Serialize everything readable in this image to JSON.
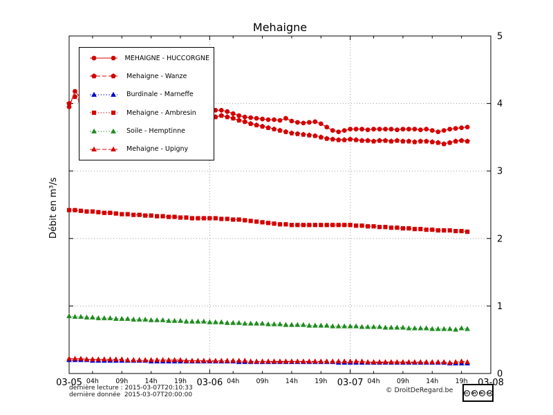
{
  "title": "Mehaigne",
  "ylabel": "Débit en m³/s",
  "footer": {
    "line1": "dernière lecture : 2015-03-07T20:10:33",
    "line2": "dernière donnée  2015-03-07T20:00:00",
    "credit": "© DroitDeRegard.be",
    "license": {
      "cc": "CC",
      "by": "BY",
      "nc": "NC",
      "sa": "SA"
    }
  },
  "chart_data": {
    "type": "line",
    "title": "Mehaigne",
    "ylabel": "Débit en m³/s",
    "x_unit": "hours since 2015-03-05 00:00",
    "x_range": [
      0,
      72
    ],
    "ylim": [
      0,
      5
    ],
    "y_ticks": [
      0,
      1,
      2,
      3,
      4,
      5
    ],
    "x_major_ticks": [
      {
        "pos": 0,
        "label": "03-05"
      },
      {
        "pos": 24,
        "label": "03-06"
      },
      {
        "pos": 48,
        "label": "03-07"
      },
      {
        "pos": 72,
        "label": "03-08"
      }
    ],
    "x_minor_ticks": [
      {
        "pos": 4,
        "label": "04h"
      },
      {
        "pos": 9,
        "label": "09h"
      },
      {
        "pos": 14,
        "label": "14h"
      },
      {
        "pos": 19,
        "label": "19h"
      },
      {
        "pos": 28,
        "label": "04h"
      },
      {
        "pos": 33,
        "label": "09h"
      },
      {
        "pos": 38,
        "label": "14h"
      },
      {
        "pos": 43,
        "label": "19h"
      },
      {
        "pos": 52,
        "label": "04h"
      },
      {
        "pos": 57,
        "label": "09h"
      },
      {
        "pos": 62,
        "label": "14h"
      },
      {
        "pos": 67,
        "label": "19h"
      }
    ],
    "grid": {
      "h_lines": [
        1,
        2,
        3,
        4
      ],
      "v_lines": [
        24,
        48
      ]
    },
    "legend_position": "top-left",
    "x_start": 0,
    "x_step": 1,
    "series": [
      {
        "name": "MEHAIGNE - HUCCORGNE",
        "color": "#d40000",
        "marker": "circle",
        "line": "solid",
        "values": [
          3.95,
          4.18,
          4.08,
          4.02,
          3.98,
          3.95,
          3.93,
          3.91,
          3.9,
          3.89,
          3.88,
          3.87,
          3.86,
          3.85,
          3.84,
          3.83,
          3.82,
          3.81,
          3.8,
          3.79,
          3.78,
          3.77,
          3.77,
          3.78,
          3.82,
          3.9,
          3.9,
          3.88,
          3.85,
          3.82,
          3.8,
          3.79,
          3.78,
          3.77,
          3.76,
          3.76,
          3.75,
          3.78,
          3.74,
          3.72,
          3.71,
          3.72,
          3.73,
          3.7,
          3.65,
          3.6,
          3.58,
          3.6,
          3.62,
          3.62,
          3.62,
          3.61,
          3.62,
          3.62,
          3.62,
          3.62,
          3.61,
          3.62,
          3.62,
          3.62,
          3.61,
          3.62,
          3.6,
          3.58,
          3.6,
          3.62,
          3.63,
          3.64,
          3.65
        ]
      },
      {
        "name": "Mehaigne - Wanze",
        "color": "#d40000",
        "marker": "pentagon",
        "line": "dashed",
        "values": [
          4.0,
          4.1,
          4.02,
          3.97,
          3.94,
          3.92,
          3.9,
          3.88,
          3.87,
          3.86,
          3.85,
          3.84,
          3.83,
          3.82,
          3.81,
          3.8,
          3.79,
          3.78,
          3.78,
          3.77,
          3.77,
          3.76,
          3.76,
          3.76,
          3.76,
          3.8,
          3.82,
          3.8,
          3.78,
          3.75,
          3.73,
          3.7,
          3.68,
          3.66,
          3.64,
          3.62,
          3.6,
          3.58,
          3.56,
          3.55,
          3.54,
          3.53,
          3.52,
          3.5,
          3.48,
          3.47,
          3.46,
          3.46,
          3.47,
          3.46,
          3.45,
          3.45,
          3.44,
          3.45,
          3.45,
          3.44,
          3.45,
          3.44,
          3.44,
          3.43,
          3.44,
          3.44,
          3.43,
          3.42,
          3.4,
          3.42,
          3.44,
          3.45,
          3.44
        ]
      },
      {
        "name": "Burdinale - Marneffe",
        "color": "#0000cc",
        "marker": "triangle",
        "line": "dotted",
        "values": [
          0.2,
          0.2,
          0.2,
          0.2,
          0.19,
          0.19,
          0.19,
          0.19,
          0.19,
          0.19,
          0.19,
          0.19,
          0.19,
          0.19,
          0.18,
          0.18,
          0.18,
          0.18,
          0.18,
          0.18,
          0.18,
          0.18,
          0.18,
          0.18,
          0.18,
          0.18,
          0.18,
          0.18,
          0.18,
          0.17,
          0.17,
          0.17,
          0.17,
          0.17,
          0.17,
          0.17,
          0.17,
          0.17,
          0.17,
          0.17,
          0.17,
          0.17,
          0.17,
          0.17,
          0.17,
          0.17,
          0.16,
          0.16,
          0.16,
          0.16,
          0.16,
          0.16,
          0.16,
          0.16,
          0.16,
          0.16,
          0.16,
          0.16,
          0.16,
          0.16,
          0.16,
          0.16,
          0.16,
          0.16,
          0.16,
          0.15,
          0.15,
          0.15,
          0.15
        ]
      },
      {
        "name": "Mehaigne - Ambresin",
        "color": "#d40000",
        "marker": "square",
        "line": "dotted",
        "values": [
          2.42,
          2.42,
          2.41,
          2.4,
          2.4,
          2.39,
          2.38,
          2.38,
          2.37,
          2.36,
          2.36,
          2.35,
          2.35,
          2.34,
          2.34,
          2.33,
          2.33,
          2.32,
          2.32,
          2.31,
          2.31,
          2.3,
          2.3,
          2.3,
          2.3,
          2.3,
          2.29,
          2.29,
          2.28,
          2.28,
          2.27,
          2.26,
          2.25,
          2.24,
          2.23,
          2.22,
          2.21,
          2.21,
          2.2,
          2.2,
          2.2,
          2.2,
          2.2,
          2.2,
          2.2,
          2.2,
          2.2,
          2.2,
          2.2,
          2.19,
          2.19,
          2.18,
          2.18,
          2.17,
          2.17,
          2.16,
          2.16,
          2.15,
          2.15,
          2.14,
          2.14,
          2.13,
          2.13,
          2.12,
          2.12,
          2.12,
          2.11,
          2.11,
          2.1
        ]
      },
      {
        "name": "Soile - Hemptinne",
        "color": "#228b22",
        "marker": "triangle",
        "line": "dotted",
        "values": [
          0.85,
          0.84,
          0.84,
          0.83,
          0.83,
          0.82,
          0.82,
          0.82,
          0.81,
          0.81,
          0.81,
          0.8,
          0.8,
          0.8,
          0.79,
          0.79,
          0.79,
          0.78,
          0.78,
          0.78,
          0.77,
          0.77,
          0.77,
          0.77,
          0.76,
          0.76,
          0.76,
          0.75,
          0.75,
          0.75,
          0.74,
          0.74,
          0.74,
          0.74,
          0.73,
          0.73,
          0.73,
          0.72,
          0.72,
          0.72,
          0.72,
          0.71,
          0.71,
          0.71,
          0.71,
          0.7,
          0.7,
          0.7,
          0.7,
          0.7,
          0.69,
          0.69,
          0.69,
          0.69,
          0.68,
          0.68,
          0.68,
          0.68,
          0.67,
          0.67,
          0.67,
          0.67,
          0.66,
          0.66,
          0.66,
          0.66,
          0.65,
          0.67,
          0.66
        ]
      },
      {
        "name": "Mehaigne - Upigny",
        "color": "#d40000",
        "marker": "triangle",
        "line": "dashed",
        "values": [
          0.22,
          0.22,
          0.22,
          0.21,
          0.21,
          0.21,
          0.21,
          0.21,
          0.21,
          0.21,
          0.2,
          0.2,
          0.2,
          0.2,
          0.2,
          0.2,
          0.2,
          0.2,
          0.2,
          0.2,
          0.19,
          0.19,
          0.19,
          0.19,
          0.19,
          0.19,
          0.19,
          0.19,
          0.19,
          0.19,
          0.19,
          0.18,
          0.18,
          0.18,
          0.18,
          0.18,
          0.18,
          0.18,
          0.18,
          0.18,
          0.18,
          0.18,
          0.18,
          0.18,
          0.18,
          0.18,
          0.18,
          0.18,
          0.18,
          0.18,
          0.18,
          0.17,
          0.17,
          0.17,
          0.17,
          0.17,
          0.17,
          0.17,
          0.17,
          0.17,
          0.17,
          0.17,
          0.17,
          0.17,
          0.17,
          0.16,
          0.17,
          0.18,
          0.17
        ]
      }
    ]
  }
}
